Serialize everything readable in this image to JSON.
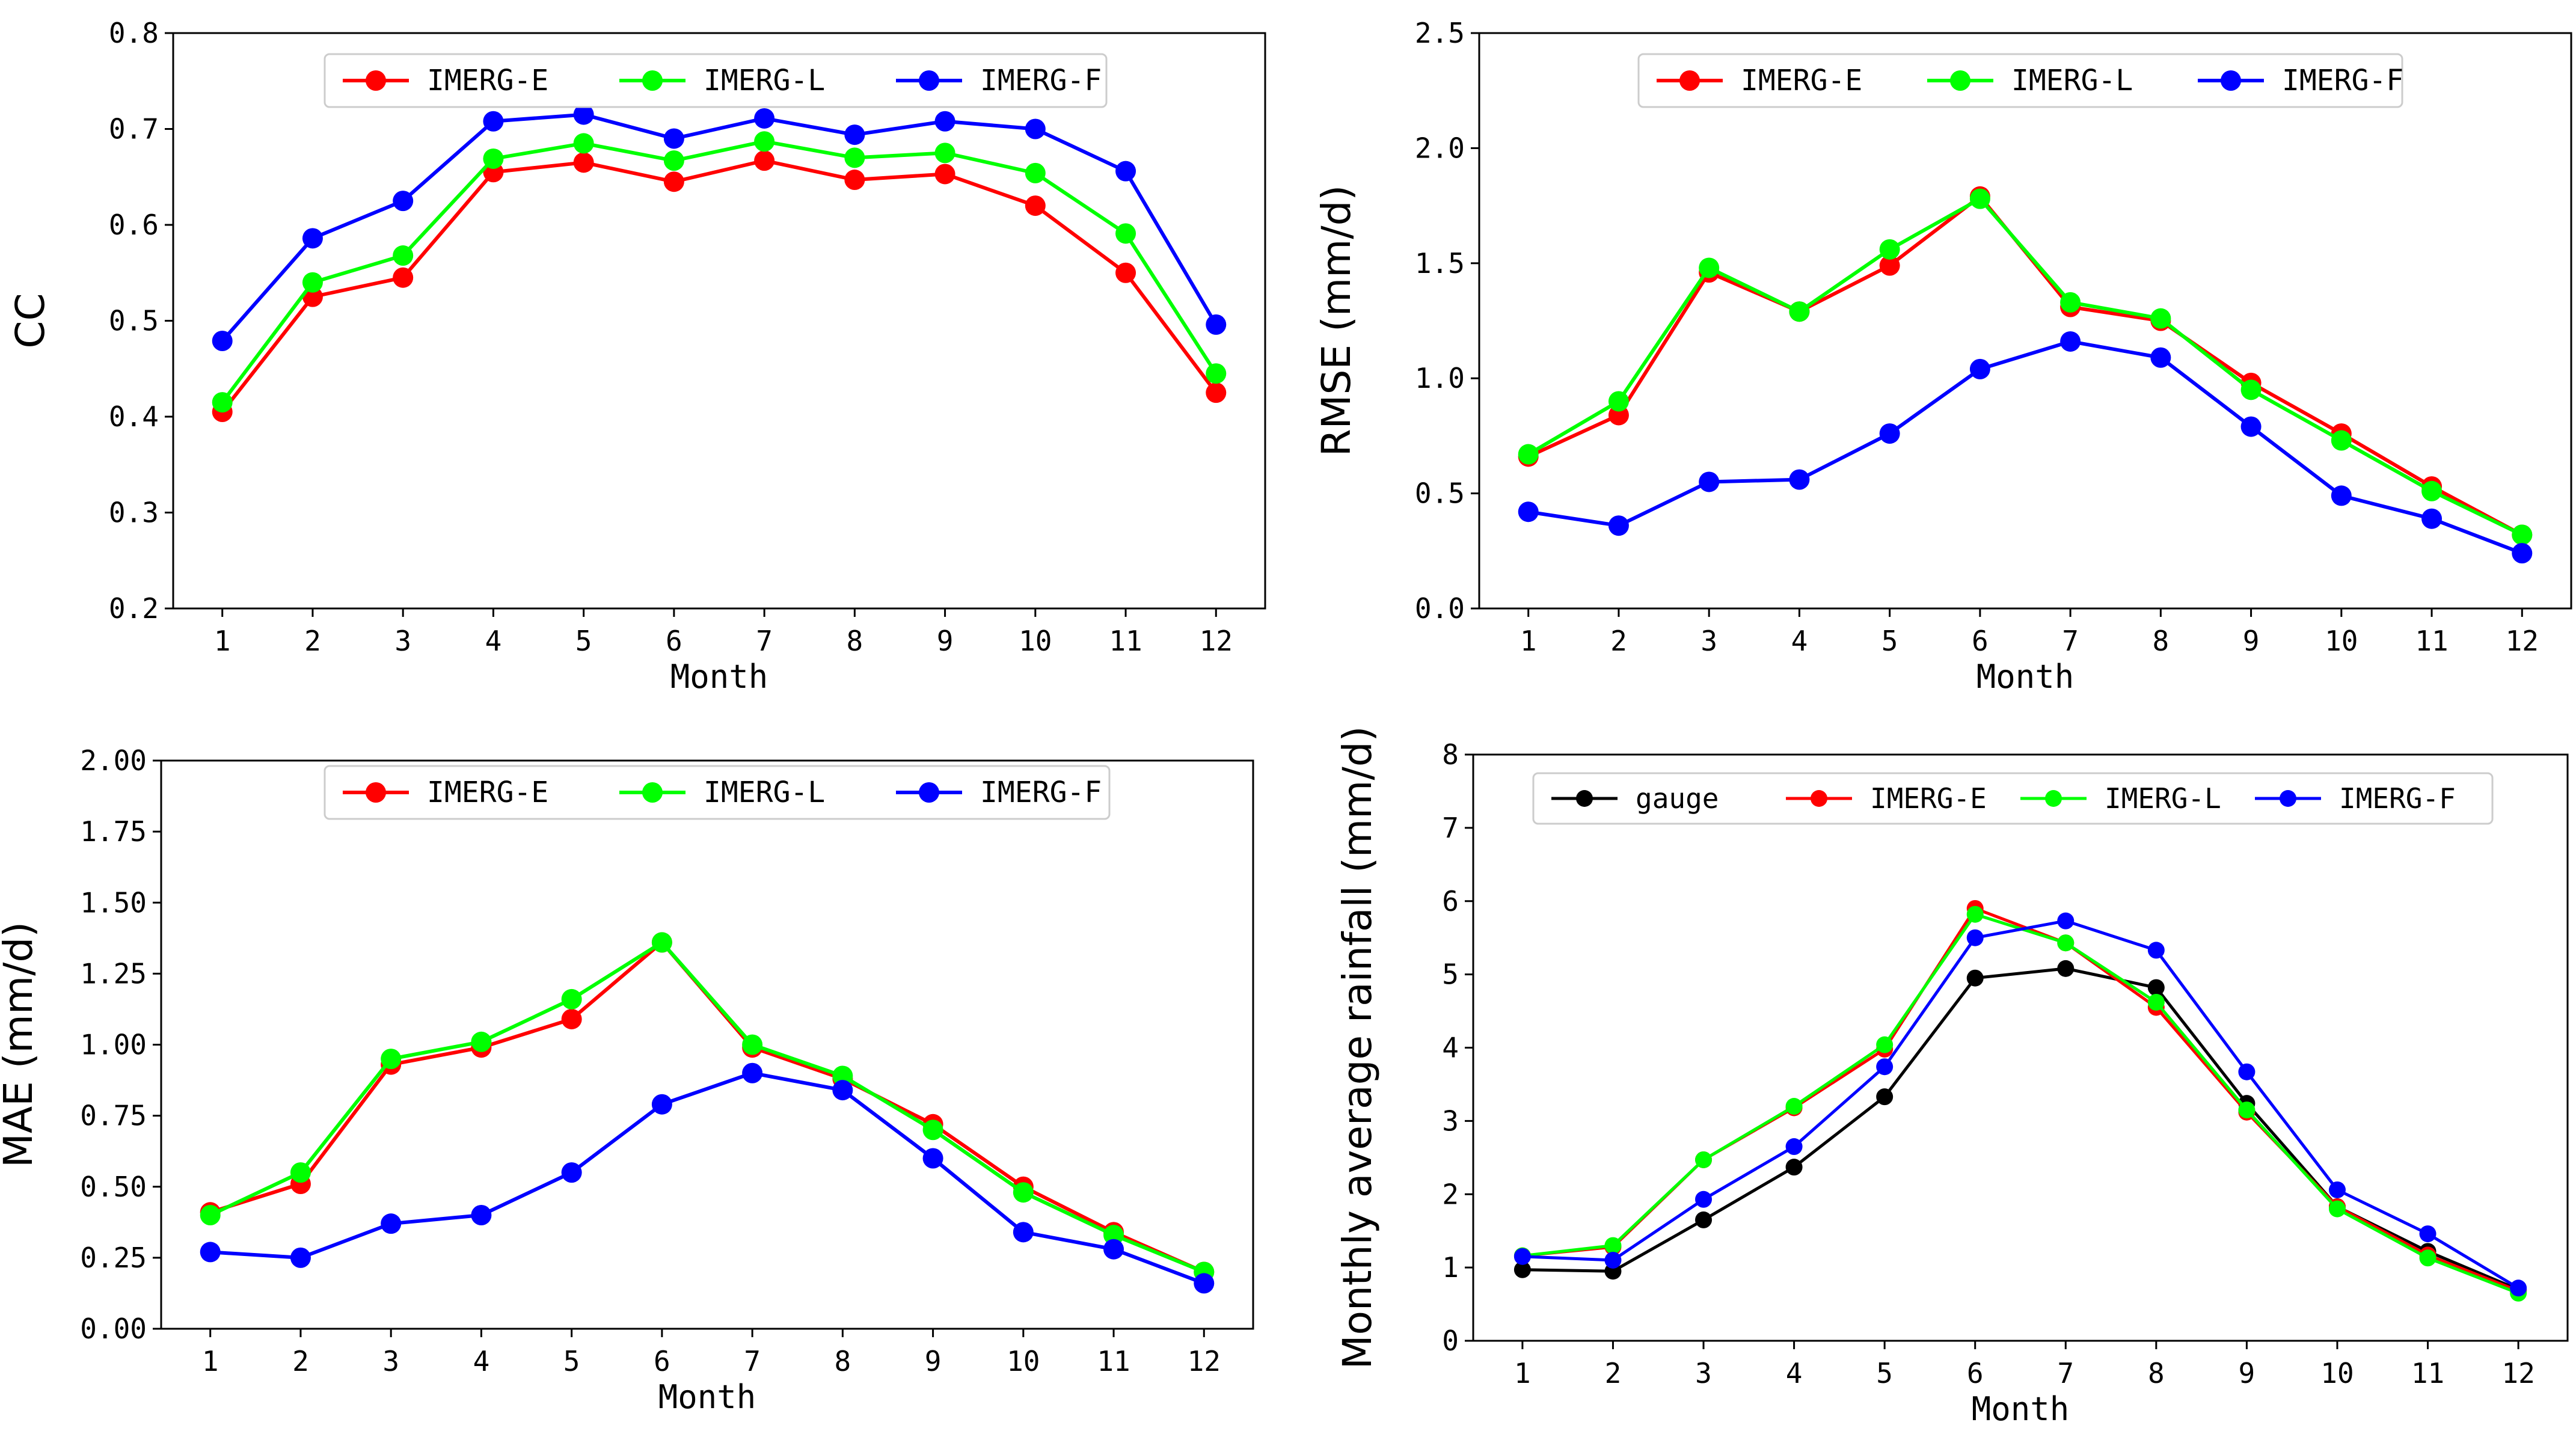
{
  "chart_data": [
    {
      "type": "line",
      "title": "",
      "xlabel": "Month",
      "ylabel": "CC",
      "ylim": [
        0.2,
        0.8
      ],
      "yticks": [
        "0.2",
        "0.3",
        "0.4",
        "0.5",
        "0.6",
        "0.7",
        "0.8"
      ],
      "categories": [
        "1",
        "2",
        "3",
        "4",
        "5",
        "6",
        "7",
        "8",
        "9",
        "10",
        "11",
        "12"
      ],
      "legend_position": "top",
      "series": [
        {
          "name": "IMERG-E",
          "color": "#ff0000",
          "values": [
            0.405,
            0.525,
            0.545,
            0.655,
            0.665,
            0.645,
            0.667,
            0.647,
            0.653,
            0.62,
            0.55,
            0.425
          ]
        },
        {
          "name": "IMERG-L",
          "color": "#00ff00",
          "values": [
            0.415,
            0.54,
            0.568,
            0.669,
            0.685,
            0.667,
            0.687,
            0.67,
            0.675,
            0.654,
            0.591,
            0.445
          ]
        },
        {
          "name": "IMERG-F",
          "color": "#0000ff",
          "values": [
            0.479,
            0.586,
            0.625,
            0.708,
            0.715,
            0.69,
            0.711,
            0.694,
            0.708,
            0.7,
            0.656,
            0.496
          ]
        }
      ]
    },
    {
      "type": "line",
      "title": "",
      "xlabel": "Month",
      "ylabel": "RMSE (mm/d)",
      "ylim": [
        0,
        2.5
      ],
      "yticks": [
        "0.0",
        "0.5",
        "1.0",
        "1.5",
        "2.0",
        "2.5"
      ],
      "categories": [
        "1",
        "2",
        "3",
        "4",
        "5",
        "6",
        "7",
        "8",
        "9",
        "10",
        "11",
        "12"
      ],
      "legend_position": "top",
      "series": [
        {
          "name": "IMERG-E",
          "color": "#ff0000",
          "values": [
            0.66,
            0.84,
            1.46,
            1.29,
            1.49,
            1.79,
            1.31,
            1.25,
            0.98,
            0.76,
            0.53,
            0.32
          ]
        },
        {
          "name": "IMERG-L",
          "color": "#00ff00",
          "values": [
            0.67,
            0.9,
            1.48,
            1.29,
            1.56,
            1.78,
            1.33,
            1.26,
            0.95,
            0.73,
            0.51,
            0.32
          ]
        },
        {
          "name": "IMERG-F",
          "color": "#0000ff",
          "values": [
            0.42,
            0.36,
            0.55,
            0.56,
            0.76,
            1.04,
            1.16,
            1.09,
            0.79,
            0.49,
            0.39,
            0.24
          ]
        }
      ]
    },
    {
      "type": "line",
      "title": "",
      "xlabel": "Month",
      "ylabel": "MAE (mm/d)",
      "ylim": [
        0,
        2.0
      ],
      "yticks": [
        "0.00",
        "0.25",
        "0.50",
        "0.75",
        "1.00",
        "1.25",
        "1.50",
        "1.75",
        "2.00"
      ],
      "categories": [
        "1",
        "2",
        "3",
        "4",
        "5",
        "6",
        "7",
        "8",
        "9",
        "10",
        "11",
        "12"
      ],
      "legend_position": "top",
      "series": [
        {
          "name": "IMERG-E",
          "color": "#ff0000",
          "values": [
            0.41,
            0.51,
            0.93,
            0.99,
            1.09,
            1.36,
            0.99,
            0.88,
            0.72,
            0.5,
            0.34,
            0.2
          ]
        },
        {
          "name": "IMERG-L",
          "color": "#00ff00",
          "values": [
            0.4,
            0.55,
            0.95,
            1.01,
            1.16,
            1.36,
            1.0,
            0.89,
            0.7,
            0.48,
            0.33,
            0.2
          ]
        },
        {
          "name": "IMERG-F",
          "color": "#0000ff",
          "values": [
            0.27,
            0.25,
            0.37,
            0.4,
            0.55,
            0.79,
            0.9,
            0.84,
            0.6,
            0.34,
            0.28,
            0.16
          ]
        }
      ]
    },
    {
      "type": "line",
      "title": "",
      "xlabel": "Month",
      "ylabel": "Monthly average rainfall (mm/d)",
      "ylim": [
        0,
        8
      ],
      "yticks": [
        "0",
        "1",
        "2",
        "3",
        "4",
        "5",
        "6",
        "7",
        "8"
      ],
      "categories": [
        "1",
        "2",
        "3",
        "4",
        "5",
        "6",
        "7",
        "8",
        "9",
        "10",
        "11",
        "12"
      ],
      "legend_position": "top",
      "series": [
        {
          "name": "gauge",
          "color": "#000000",
          "values": [
            0.97,
            0.95,
            1.65,
            2.37,
            3.33,
            4.95,
            5.08,
            4.82,
            3.24,
            1.83,
            1.22,
            0.7
          ]
        },
        {
          "name": "IMERG-E",
          "color": "#ff0000",
          "values": [
            1.16,
            1.28,
            2.47,
            3.18,
            3.98,
            5.9,
            5.43,
            4.55,
            3.12,
            1.83,
            1.17,
            0.68
          ]
        },
        {
          "name": "IMERG-L",
          "color": "#00ff00",
          "values": [
            1.16,
            1.3,
            2.47,
            3.2,
            4.04,
            5.82,
            5.43,
            4.62,
            3.15,
            1.8,
            1.13,
            0.65
          ]
        },
        {
          "name": "IMERG-F",
          "color": "#0000ff",
          "values": [
            1.15,
            1.1,
            1.93,
            2.65,
            3.74,
            5.5,
            5.73,
            5.33,
            3.67,
            2.06,
            1.46,
            0.72
          ]
        }
      ]
    }
  ]
}
